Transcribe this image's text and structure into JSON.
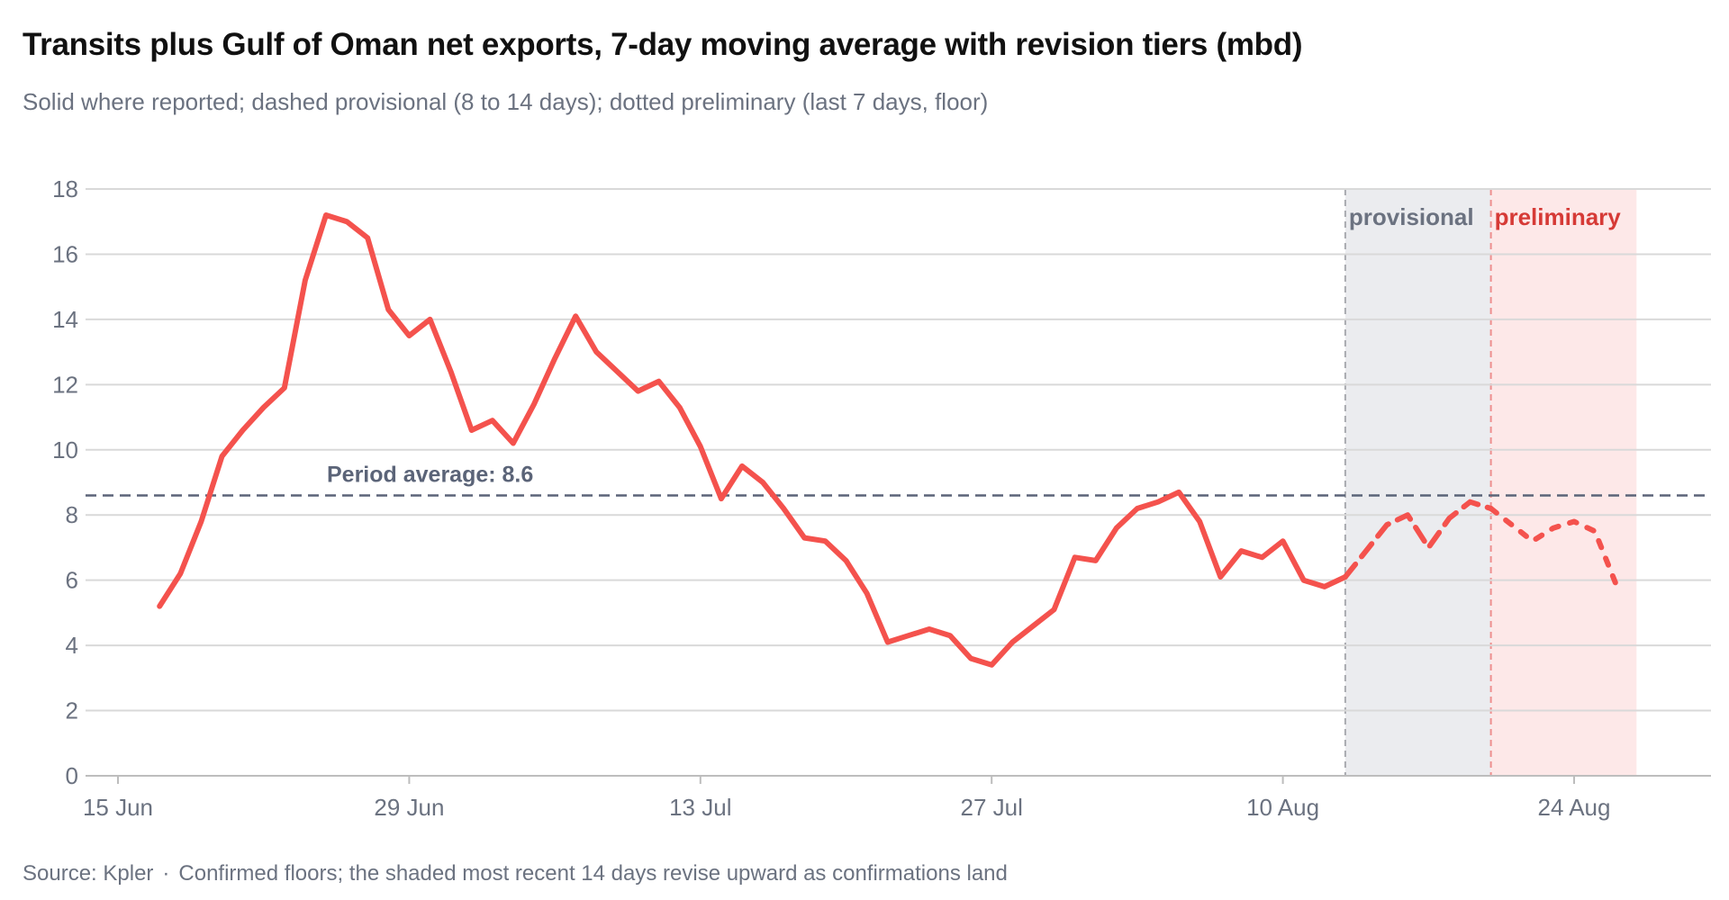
{
  "header": {
    "title": "Transits plus Gulf of Oman net exports, 7-day moving average with revision tiers (mbd)",
    "subtitle": "Solid where reported; dashed provisional (8 to 14 days); dotted preliminary (last 7 days, floor)"
  },
  "footer": {
    "source": "Source: Kpler",
    "separator": "·",
    "note": "Confirmed floors; the shaded most recent 14 days revise upward as confirmations land"
  },
  "colors": {
    "line": "#f4524d",
    "average": "#5b6478",
    "provisional_band": "#ebecef",
    "preliminary_band": "#fde8e8",
    "provisional_label": "#6b7280",
    "preliminary_label": "#d63a36",
    "grid": "#d9d9d9"
  },
  "chart_data": {
    "type": "line",
    "title": "Transits plus Gulf of Oman net exports, 7-day moving average with revision tiers (mbd)",
    "subtitle": "Solid where reported; dashed provisional (8 to 14 days); dotted preliminary (last 7 days, floor)",
    "xlabel": "",
    "ylabel": "",
    "ylim": [
      0,
      18
    ],
    "yticks": [
      0,
      2,
      4,
      6,
      8,
      10,
      12,
      14,
      16,
      18
    ],
    "xticks": [
      {
        "date": "2025-06-15",
        "label": "15 Jun"
      },
      {
        "date": "2025-06-29",
        "label": "29 Jun"
      },
      {
        "date": "2025-07-13",
        "label": "13 Jul"
      },
      {
        "date": "2025-07-27",
        "label": "27 Jul"
      },
      {
        "date": "2025-08-10",
        "label": "10 Aug"
      },
      {
        "date": "2025-08-24",
        "label": "24 Aug"
      }
    ],
    "xlim": [
      "2025-06-15",
      "2025-08-30"
    ],
    "grid": true,
    "period_average": {
      "value": 8.6,
      "label": "Period average: 8.6"
    },
    "bands": [
      {
        "name": "provisional",
        "label": "provisional",
        "start": "2025-08-13",
        "end": "2025-08-20"
      },
      {
        "name": "preliminary",
        "label": "preliminary",
        "start": "2025-08-20",
        "end": "2025-08-27"
      }
    ],
    "series": [
      {
        "style_segments": {
          "solid_until": "2025-08-13",
          "dashed_until": "2025-08-20",
          "dotted_until": "2025-08-26"
        },
        "x": [
          "2025-06-17",
          "2025-06-18",
          "2025-06-19",
          "2025-06-20",
          "2025-06-21",
          "2025-06-22",
          "2025-06-23",
          "2025-06-24",
          "2025-06-25",
          "2025-06-26",
          "2025-06-27",
          "2025-06-28",
          "2025-06-29",
          "2025-06-30",
          "2025-07-01",
          "2025-07-02",
          "2025-07-03",
          "2025-07-04",
          "2025-07-05",
          "2025-07-06",
          "2025-07-07",
          "2025-07-08",
          "2025-07-09",
          "2025-07-10",
          "2025-07-11",
          "2025-07-12",
          "2025-07-13",
          "2025-07-14",
          "2025-07-15",
          "2025-07-16",
          "2025-07-17",
          "2025-07-18",
          "2025-07-19",
          "2025-07-20",
          "2025-07-21",
          "2025-07-22",
          "2025-07-23",
          "2025-07-24",
          "2025-07-25",
          "2025-07-26",
          "2025-07-27",
          "2025-07-28",
          "2025-07-29",
          "2025-07-30",
          "2025-07-31",
          "2025-08-01",
          "2025-08-02",
          "2025-08-03",
          "2025-08-04",
          "2025-08-05",
          "2025-08-06",
          "2025-08-07",
          "2025-08-08",
          "2025-08-09",
          "2025-08-10",
          "2025-08-11",
          "2025-08-12",
          "2025-08-13",
          "2025-08-14",
          "2025-08-15",
          "2025-08-16",
          "2025-08-17",
          "2025-08-18",
          "2025-08-19",
          "2025-08-20",
          "2025-08-21",
          "2025-08-22",
          "2025-08-23",
          "2025-08-24",
          "2025-08-25",
          "2025-08-26"
        ],
        "y": [
          5.2,
          6.2,
          7.8,
          9.8,
          10.6,
          11.3,
          11.9,
          15.2,
          17.2,
          17.0,
          16.5,
          14.3,
          13.5,
          14.0,
          12.4,
          10.6,
          10.9,
          10.2,
          11.4,
          12.8,
          14.1,
          13.0,
          12.4,
          11.8,
          12.1,
          11.3,
          10.1,
          8.5,
          9.5,
          9.0,
          8.2,
          7.3,
          7.2,
          6.6,
          5.6,
          4.1,
          4.3,
          4.5,
          4.3,
          3.6,
          3.4,
          4.1,
          4.6,
          5.1,
          6.7,
          6.6,
          7.6,
          8.2,
          8.4,
          8.7,
          7.8,
          6.1,
          6.9,
          6.7,
          7.2,
          6.0,
          5.8,
          6.1,
          6.9,
          7.7,
          8.0,
          7.0,
          7.9,
          8.4,
          8.2,
          7.7,
          7.2,
          7.6,
          7.8,
          7.5,
          5.9
        ]
      }
    ]
  }
}
